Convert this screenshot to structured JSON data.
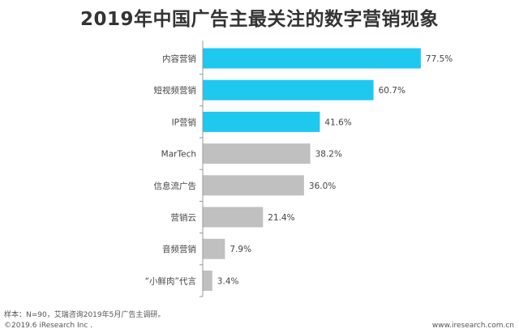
{
  "page": {
    "note": "样本：N=90，艾瑞咨询2019年5月广告主调研。",
    "copyright": "©2019.6 iResearch Inc .",
    "url": "www.iresearch.com.cn"
  },
  "colors": {
    "highlight": "#1ec8ef",
    "normal": "#c0c0c0",
    "axis": "#999999",
    "label": "#444444"
  },
  "chart_data": {
    "type": "bar",
    "orientation": "horizontal",
    "title": "2019年中国广告主最关注的数字营销现象",
    "categories": [
      "内容营销",
      "短视频营销",
      "IP营销",
      "MarTech",
      "信息流广告",
      "营销云",
      "音频营销",
      "“小鲜肉”代言"
    ],
    "values": [
      77.5,
      60.7,
      41.6,
      38.2,
      36.0,
      21.4,
      7.9,
      3.4
    ],
    "value_labels": [
      "77.5%",
      "60.7%",
      "41.6%",
      "38.2%",
      "36.0%",
      "21.4%",
      "7.9%",
      "3.4%"
    ],
    "highlighted_count": 3,
    "unit": "%",
    "xlim": [
      0,
      100
    ],
    "grid": false,
    "legend": "none"
  }
}
